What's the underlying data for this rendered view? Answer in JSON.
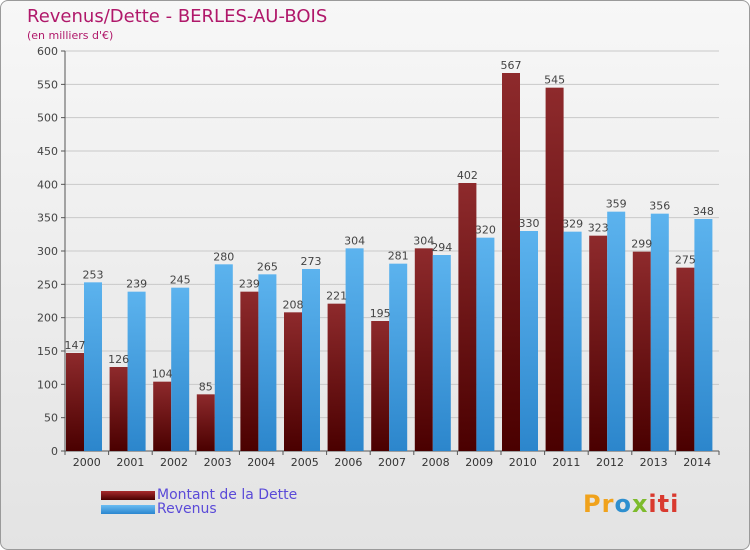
{
  "colors": {
    "debt": "#7a1416",
    "revenue": "#3d9ee6",
    "title": "#b0186a",
    "legend_text": "#5a4ad8"
  },
  "chart_data": {
    "type": "bar",
    "title": "Revenus/Dette - BERLES-AU-BOIS",
    "subtitle": "(en milliers d'€)",
    "categories": [
      "2000",
      "2001",
      "2002",
      "2003",
      "2004",
      "2005",
      "2006",
      "2007",
      "2008",
      "2009",
      "2010",
      "2011",
      "2012",
      "2013",
      "2014"
    ],
    "series": [
      {
        "name": "Montant de la Dette",
        "values": [
          147,
          126,
          104,
          85,
          239,
          208,
          221,
          195,
          304,
          402,
          567,
          545,
          323,
          299,
          275
        ]
      },
      {
        "name": "Revenus",
        "values": [
          253,
          239,
          245,
          280,
          265,
          273,
          304,
          281,
          294,
          320,
          330,
          329,
          359,
          356,
          348
        ]
      }
    ],
    "ylim": [
      0,
      600
    ],
    "yticks": [
      0,
      50,
      100,
      150,
      200,
      250,
      300,
      350,
      400,
      450,
      500,
      550,
      600
    ],
    "grid": true,
    "legend_position": "bottom-left"
  },
  "logo": {
    "parts": [
      "Pr",
      "o",
      "x",
      "iti"
    ]
  }
}
